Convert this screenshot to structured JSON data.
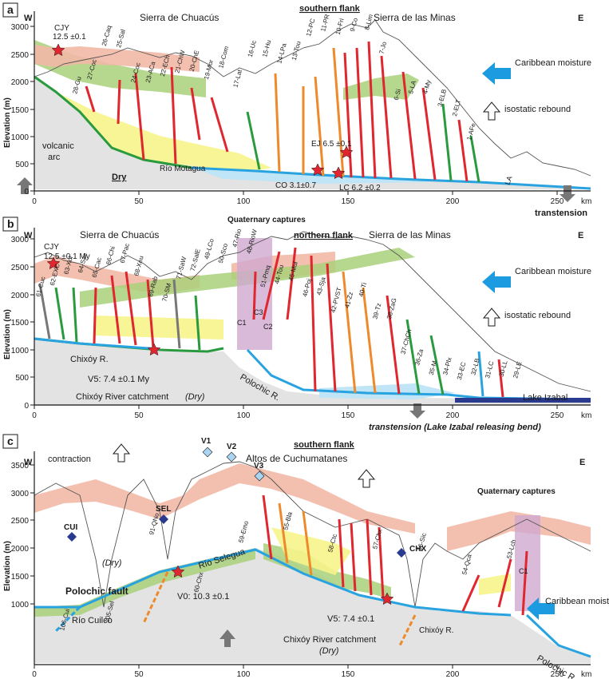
{
  "panels": [
    {
      "id": "a",
      "panel_label": "a",
      "west_label": "W",
      "east_label": "E",
      "flank_label": "southern flank",
      "range_left": "Sierra de Chuacús",
      "range_right": "Sierra de las Minas",
      "ylabel": "Elevation (m)",
      "yticks": [
        "3000",
        "2500",
        "2000",
        "1500",
        "1000",
        "500",
        "0"
      ],
      "xticks": [
        "0",
        "50",
        "100",
        "150",
        "200",
        "250"
      ],
      "xunit": "km",
      "date_label": "CJY",
      "date_value": "12.5 ±0.1",
      "moisture": "Caribbean moisture",
      "rebound": "isostatic rebound",
      "bottom_right": "transtension",
      "labels": [
        {
          "text": "volcanic"
        },
        {
          "text": "arc"
        },
        {
          "text": "Dry"
        },
        {
          "text": "Río Motagua"
        },
        {
          "text": "CO 3.1±0.7"
        },
        {
          "text": "LC 6.2 ±0.2"
        },
        {
          "text": "EJ 6.5 ±0.1"
        },
        {
          "text": "LA"
        }
      ],
      "samples": [
        "28-Gu",
        "27-Coc",
        "26-Caq",
        "25-Sal",
        "24-Coc",
        "23-ACa",
        "22-ECh",
        "21-ChW",
        "20-ChE",
        "19-Mor",
        "18-Com",
        "17-Lat",
        "16-Uc",
        "15-Hu",
        "14-LPa",
        "13-Tou",
        "12-PC",
        "11-PR",
        "10-Fri",
        "9-Co",
        "8-Lim",
        "7-Jo",
        "6-Si",
        "5-LA",
        "4-My",
        "3-ELB",
        "2-ELT",
        "1-AFe"
      ]
    },
    {
      "id": "b",
      "panel_label": "b",
      "west_label": "W",
      "east_label": "E",
      "flank_label": "northern flank",
      "range_left": "Sierra de Chuacús",
      "range_right": "Sierra de las Minas",
      "ylabel": "Elevation (m)",
      "yticks": [
        "3000",
        "2500",
        "2000",
        "1500",
        "1000",
        "500",
        "0"
      ],
      "xticks": [
        "0",
        "50",
        "100",
        "150",
        "200",
        "250"
      ],
      "xunit": "km",
      "date_label": "CJY",
      "date_value": "12.5 ±0.1 My",
      "moisture": "Caribbean moisture",
      "rebound": "isostatic rebound",
      "captures": "Quaternary captures",
      "bottom_right": "transtension (Lake Izabal releasing bend)",
      "labels": [
        {
          "text": "Chixóy R."
        },
        {
          "text": "V5: 7.4 ±0.1 My"
        },
        {
          "text": "Chixóy River catchment"
        },
        {
          "text": "(Dry)"
        },
        {
          "text": "Polochic R."
        },
        {
          "text": "Lake Izabal"
        },
        {
          "text": "C1"
        },
        {
          "text": "C2"
        },
        {
          "text": "C3"
        }
      ],
      "samples": [
        "61-Cuc",
        "62-EXC",
        "63-Xol",
        "64-Sac",
        "65-Cac",
        "66-Chi",
        "67-Pac",
        "68-Xeu",
        "69-Rab",
        "70-SM",
        "71-SaW",
        "72-SalE",
        "49-LCo",
        "50-Sco",
        "47-Rio",
        "48-RioW",
        "51-Pmq",
        "44-Tou",
        "45-Mul",
        "46-Poj",
        "43-Sja",
        "42-PVST",
        "41-Zz",
        "40-Ti",
        "39-Tz",
        "38-ZaG",
        "37-ChCh",
        "36-Za",
        "35-M",
        "34-Plx",
        "33-EC",
        "32-LB",
        "31-LC",
        "30-LL",
        "29-LE"
      ]
    },
    {
      "id": "c",
      "panel_label": "c",
      "west_label": "W",
      "east_label": "E",
      "flank_label": "southern flank",
      "range_right": "Altos de Cuchumatanes",
      "ylabel": "Elevation (m)",
      "yticks": [
        "3500",
        "3000",
        "2500",
        "2000",
        "1500",
        "1000"
      ],
      "xticks": [
        "0",
        "50",
        "100",
        "150",
        "200",
        "250"
      ],
      "xunit": "km",
      "contraction": "contraction",
      "captures": "Quaternary captures",
      "moisture": "Caribbean moisture",
      "labels": [
        {
          "text": "CUI"
        },
        {
          "text": "SEL"
        },
        {
          "text": "CHX"
        },
        {
          "text": "V1"
        },
        {
          "text": "V2"
        },
        {
          "text": "V3"
        },
        {
          "text": "(Dry)"
        },
        {
          "text": "Polochic fault"
        },
        {
          "text": "Río Selegua"
        },
        {
          "text": "Río Cuilco"
        },
        {
          "text": "V0: 10.3 ±0.1"
        },
        {
          "text": "V5: 7.4 ±0.1"
        },
        {
          "text": "Chixóy River catchment"
        },
        {
          "text": "(Dry)"
        },
        {
          "text": "Chixóy R."
        },
        {
          "text": "Polochic R."
        },
        {
          "text": "C1"
        }
      ],
      "samples": [
        "106-Cui",
        "105-Sel",
        "91-QNo",
        "60-Chx",
        "59-Emo",
        "55-Bla",
        "58-Ctc",
        "57-Chx",
        "56-Sic",
        "54-Qca",
        "53-Lch"
      ]
    }
  ],
  "colors": {
    "ground": "#e3e3e3",
    "river": "#29a3e0",
    "pink_band": "#f2b8a6",
    "green_band": "#a9d07a",
    "yellow_band": "#f6f48a",
    "purple_band": "#cfa9d0",
    "lightblue": "#bfe5f6",
    "red_trib": "#e0262e",
    "orange_trib": "#ee8a2c",
    "star": "#e0262e",
    "arrow": "#1d9be0",
    "gray_arrow": "#777777"
  }
}
